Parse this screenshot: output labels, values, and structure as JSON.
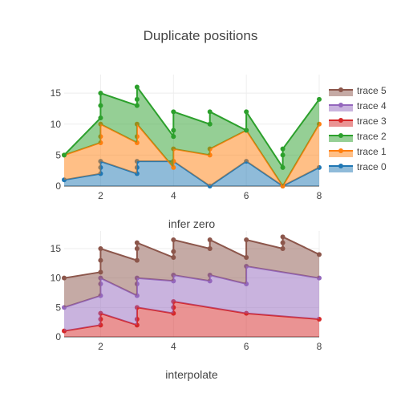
{
  "title": "Duplicate positions",
  "chart_data": [
    {
      "type": "area",
      "stackgaps": "infer zero",
      "xlim": [
        1,
        8
      ],
      "ylim": [
        0,
        18
      ],
      "xticks": [
        2,
        4,
        6,
        8
      ],
      "yticks": [
        0,
        5,
        10,
        15
      ],
      "legend_position": "right",
      "series": [
        {
          "name": "trace 0",
          "color": "#1f77b4",
          "x": [
            1,
            2,
            2,
            2,
            3,
            3,
            3,
            4,
            5,
            6,
            7,
            8
          ],
          "y": [
            1,
            2,
            3,
            4,
            2,
            3,
            4,
            4,
            0,
            4,
            0,
            3
          ]
        },
        {
          "name": "trace 1",
          "color": "#ff7f0e",
          "x": [
            1,
            2,
            2,
            2,
            3,
            3,
            3,
            4,
            4,
            4,
            5,
            5,
            6,
            7,
            8
          ],
          "y": [
            5,
            7,
            8,
            10,
            7,
            8,
            10,
            3,
            4,
            6,
            5,
            6,
            9,
            0,
            10
          ]
        },
        {
          "name": "trace 2",
          "color": "#2ca02c",
          "x": [
            1,
            2,
            2,
            2,
            3,
            3,
            3,
            4,
            4,
            4,
            5,
            5,
            6,
            6,
            7,
            7,
            7,
            8
          ],
          "y": [
            5,
            11,
            13,
            15,
            13,
            14,
            16,
            8,
            9,
            12,
            10,
            12,
            9,
            12,
            3,
            5,
            6,
            14
          ]
        }
      ]
    },
    {
      "type": "area",
      "stackgaps": "interpolate",
      "xlim": [
        1,
        8
      ],
      "ylim": [
        0,
        18
      ],
      "xticks": [
        2,
        4,
        6,
        8
      ],
      "yticks": [
        0,
        5,
        10,
        15
      ],
      "legend_position": "right",
      "series": [
        {
          "name": "trace 3",
          "color": "#d62728",
          "x": [
            1,
            2,
            2,
            2,
            3,
            3,
            3,
            4,
            4,
            4,
            6,
            8
          ],
          "y": [
            1,
            2,
            3,
            4,
            2,
            3,
            5,
            4,
            5,
            6,
            4,
            3
          ]
        },
        {
          "name": "trace 4",
          "color": "#9467bd",
          "x": [
            1,
            2,
            2,
            2,
            3,
            3,
            3,
            4,
            4,
            5,
            5,
            6,
            6,
            8
          ],
          "y": [
            5,
            7,
            9,
            10,
            7,
            9,
            10,
            9.5,
            10.5,
            9.5,
            10.5,
            9,
            12,
            10
          ]
        },
        {
          "name": "trace 5",
          "color": "#8c564b",
          "x": [
            1,
            2,
            2,
            2,
            3,
            3,
            3,
            4,
            4,
            4,
            5,
            5,
            6,
            6,
            7,
            7,
            7,
            8
          ],
          "y": [
            10,
            11,
            13,
            15,
            13,
            15,
            16,
            13.5,
            14.5,
            16.5,
            15,
            16.5,
            13.5,
            16.5,
            15,
            16,
            17,
            14
          ]
        }
      ]
    }
  ],
  "legend": {
    "entries": [
      {
        "name": "trace 5",
        "color": "#8c564b"
      },
      {
        "name": "trace 4",
        "color": "#9467bd"
      },
      {
        "name": "trace 3",
        "color": "#d62728"
      },
      {
        "name": "trace 2",
        "color": "#2ca02c"
      },
      {
        "name": "trace 1",
        "color": "#ff7f0e"
      },
      {
        "name": "trace 0",
        "color": "#1f77b4"
      }
    ]
  }
}
